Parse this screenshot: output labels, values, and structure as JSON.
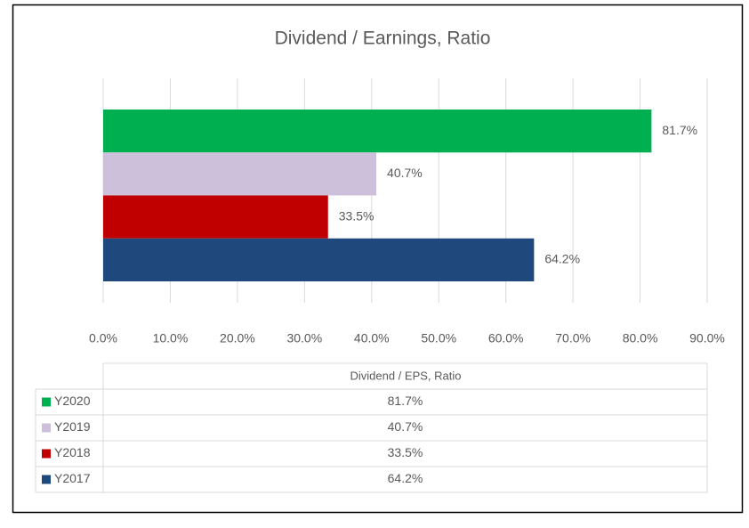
{
  "chart_data": {
    "type": "bar",
    "orientation": "horizontal",
    "title": "Dividend / Earnings, Ratio",
    "categories": [
      "Y2020",
      "Y2019",
      "Y2018",
      "Y2017"
    ],
    "values": [
      81.7,
      40.7,
      33.5,
      64.2
    ],
    "value_labels": [
      "81.7%",
      "40.7%",
      "33.5%",
      "64.2%"
    ],
    "colors": [
      "#00b050",
      "#ccc0da",
      "#c00000",
      "#1f497d"
    ],
    "xlim": [
      0,
      90
    ],
    "xticks": [
      {
        "value": 0,
        "label": "0.0%"
      },
      {
        "value": 10,
        "label": "10.0%"
      },
      {
        "value": 20,
        "label": "20.0%"
      },
      {
        "value": 30,
        "label": "30.0%"
      },
      {
        "value": 40,
        "label": "40.0%"
      },
      {
        "value": 50,
        "label": "50.0%"
      },
      {
        "value": 60,
        "label": "60.0%"
      },
      {
        "value": 70,
        "label": "70.0%"
      },
      {
        "value": 80,
        "label": "80.0%"
      },
      {
        "value": 90,
        "label": "90.0%"
      }
    ],
    "grid": true,
    "data_table": {
      "header": "Dividend / EPS, Ratio"
    }
  }
}
